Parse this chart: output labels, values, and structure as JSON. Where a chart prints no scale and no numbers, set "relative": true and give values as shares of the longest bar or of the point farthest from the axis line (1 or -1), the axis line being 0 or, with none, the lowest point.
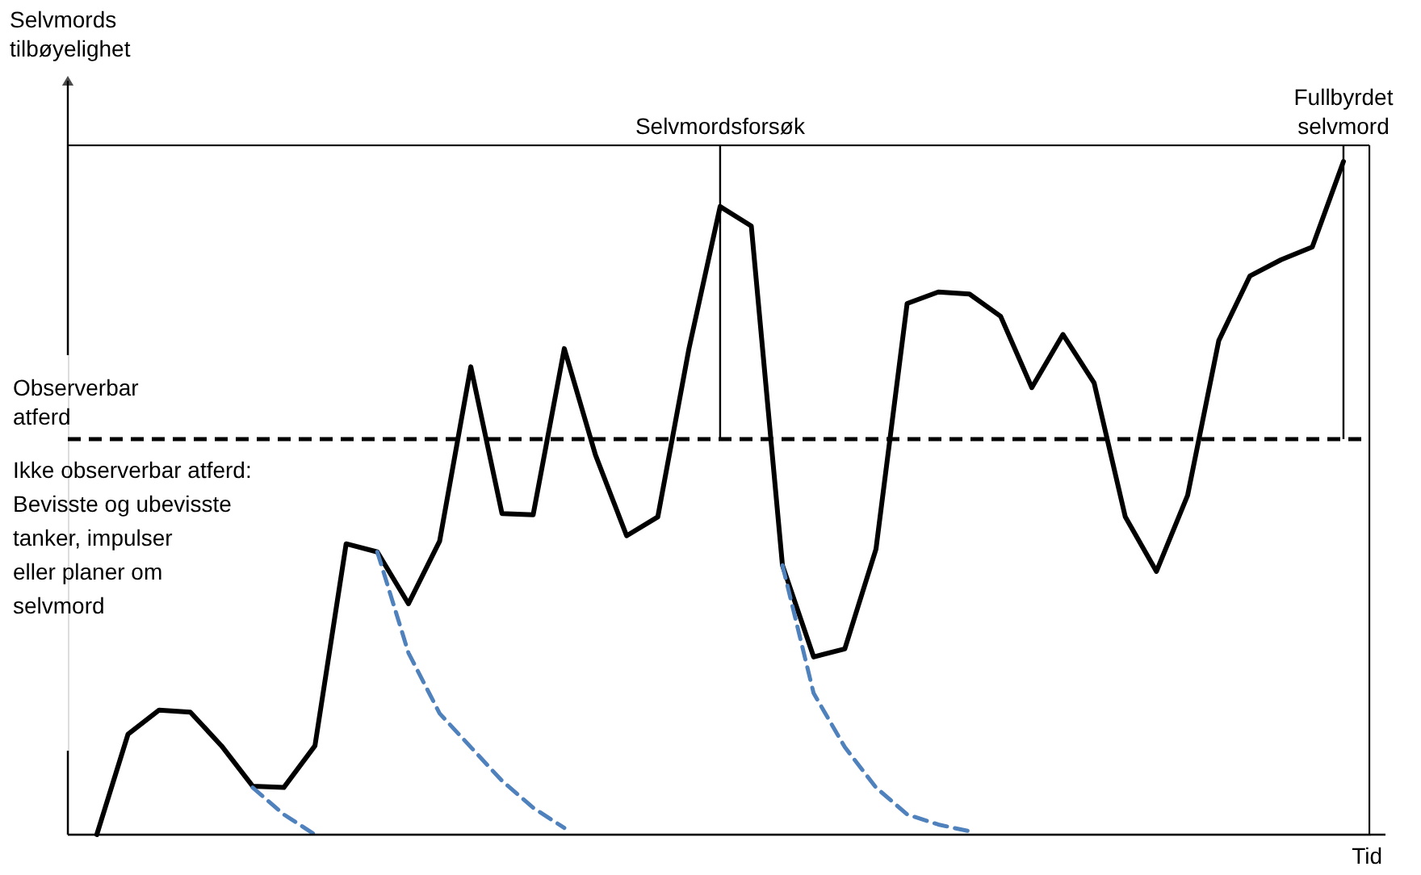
{
  "chart_data": {
    "type": "line",
    "relative": true,
    "tick_labels": false,
    "grid": false,
    "xlabel": "Tid",
    "ylabel": "Selvmords\ntilbøyelighet",
    "categories": [
      null,
      null,
      null,
      null,
      null,
      null,
      null,
      null,
      null,
      null,
      null,
      null,
      null,
      null,
      null,
      null,
      null,
      null,
      null,
      null,
      null,
      null,
      null,
      null,
      null,
      null,
      null,
      null,
      null,
      null,
      null,
      null,
      null,
      null,
      null,
      null,
      null,
      null,
      null,
      null,
      null
    ],
    "series": [
      {
        "color": "#000000",
        "line_style": "solid",
        "values": [
          0,
          0.149,
          0.185,
          0.182,
          0.132,
          0.072,
          0.07,
          0.132,
          0.432,
          0.42,
          0.343,
          0.436,
          0.695,
          0.477,
          0.475,
          0.722,
          0.564,
          0.444,
          0.472,
          0.722,
          0.933,
          0.904,
          0.4,
          0.264,
          0.276,
          0.424,
          0.789,
          0.806,
          0.803,
          0.77,
          0.664,
          0.743,
          0.671,
          0.472,
          0.391,
          0.504,
          0.734,
          0.83,
          0.854,
          0.873,
          1
        ]
      },
      {
        "color": "#4f81bd",
        "line_style": "dashed",
        "values": [
          null,
          null,
          null,
          null,
          null,
          0.07,
          0.03,
          0,
          null,
          null,
          null,
          null,
          null,
          null,
          null,
          null,
          null,
          null,
          null,
          null,
          null,
          null,
          null,
          null,
          null,
          null,
          null,
          null,
          null,
          null,
          null,
          null,
          null,
          null,
          null,
          null,
          null,
          null,
          null,
          null,
          null
        ]
      },
      {
        "color": "#4f81bd",
        "line_style": "dashed",
        "values": [
          null,
          null,
          null,
          null,
          null,
          null,
          null,
          null,
          null,
          0.42,
          0.27,
          0.18,
          0.13,
          0.08,
          0.04,
          0.01,
          null,
          null,
          null,
          null,
          null,
          null,
          null,
          null,
          null,
          null,
          null,
          null,
          null,
          null,
          null,
          null,
          null,
          null,
          null,
          null,
          null,
          null,
          null,
          null,
          null
        ]
      },
      {
        "color": "#4f81bd",
        "line_style": "dashed",
        "values": [
          null,
          null,
          null,
          null,
          null,
          null,
          null,
          null,
          null,
          null,
          null,
          null,
          null,
          null,
          null,
          null,
          null,
          null,
          null,
          null,
          null,
          null,
          0.4,
          0.21,
          0.13,
          0.07,
          0.03,
          0.015,
          0.005,
          null,
          null,
          null,
          null,
          null,
          null,
          null,
          null,
          null,
          null,
          null,
          null
        ]
      }
    ],
    "ref_lines": [
      {
        "axis": "y",
        "value": 0.5875,
        "label": "Observerbar\natferd",
        "color": "#000000",
        "line_style": "dashed"
      }
    ],
    "annotations": [
      "Ikke observerbar atferd:\nBevisste og ubevisste\ntanker, impulser\neller planer om\nselvmord",
      {
        "text": "Selvmordsforsøk",
        "y": 0.933
      },
      {
        "text": "Fullbyrdet\nselvmord",
        "y": 1
      }
    ]
  }
}
